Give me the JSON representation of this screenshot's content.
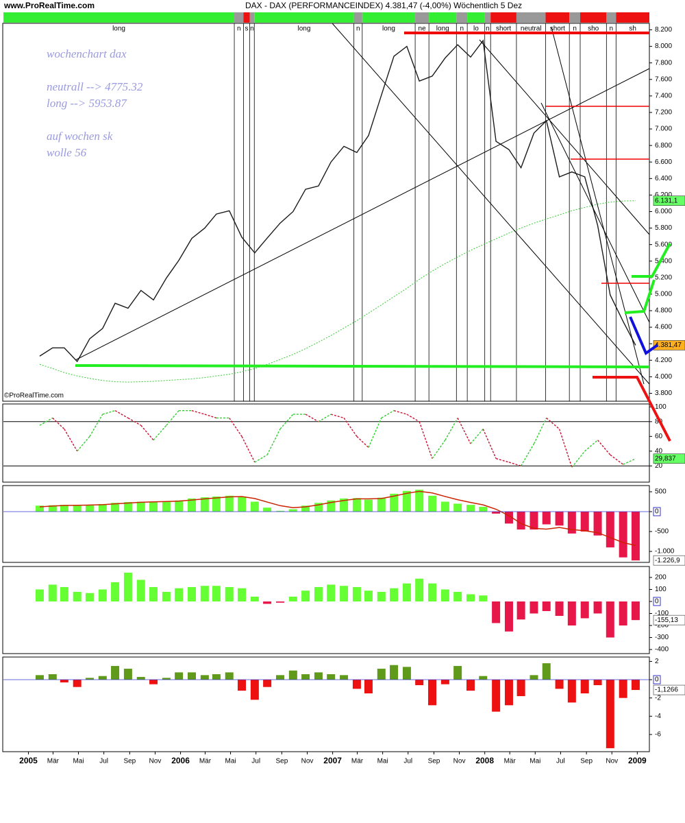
{
  "site": "www.ProRealTime.com",
  "copyright": "©ProRealTime.com",
  "chart_data": [
    {
      "type": "line",
      "title": "DAX - DAX (PERFORMANCEINDEX)    4.381,47 (-4,00%)    Wöchentlich  5 Dez",
      "annotations": [
        "wochenchart  dax",
        "neutrall --> 4775.32",
        "long      --> 5953.87",
        "auf wochen sk",
        "wolle 56"
      ],
      "x": [
        "2005-01",
        "2005-02",
        "2005-03",
        "2005-04",
        "2005-05",
        "2005-06",
        "2005-07",
        "2005-08",
        "2005-09",
        "2005-10",
        "2005-11",
        "2005-12",
        "2006-01",
        "2006-02",
        "2006-03",
        "2006-04",
        "2006-05",
        "2006-06",
        "2006-07",
        "2006-08",
        "2006-09",
        "2006-10",
        "2006-11",
        "2006-12",
        "2007-01",
        "2007-02",
        "2007-03",
        "2007-04",
        "2007-05",
        "2007-06",
        "2007-07",
        "2007-08",
        "2007-09",
        "2007-10",
        "2007-11",
        "2007-12",
        "2008-01",
        "2008-02",
        "2008-03",
        "2008-04",
        "2008-05",
        "2008-06",
        "2008-07",
        "2008-08",
        "2008-09",
        "2008-10",
        "2008-11",
        "2008-12"
      ],
      "values": [
        4250,
        4350,
        4350,
        4185,
        4460,
        4585,
        4890,
        4830,
        5045,
        4930,
        5195,
        5410,
        5675,
        5800,
        5970,
        6010,
        5690,
        5500,
        5680,
        5860,
        6000,
        6270,
        6310,
        6600,
        6790,
        6715,
        6920,
        7410,
        7880,
        8000,
        7580,
        7640,
        7860,
        8020,
        7870,
        8070,
        6850,
        6750,
        6530,
        6950,
        7100,
        6420,
        6480,
        6420,
        5830,
        4990,
        4670,
        4381.47
      ],
      "color": "#1a1a1a",
      "last_label": "4.381,47",
      "last_label_color": "#ffb020",
      "ma": {
        "values": [
          4150,
          4100,
          4050,
          4010,
          3980,
          3955,
          3940,
          3935,
          3940,
          3945,
          3955,
          3965,
          3975,
          3990,
          4010,
          4030,
          4060,
          4100,
          4150,
          4210,
          4270,
          4340,
          4420,
          4500,
          4590,
          4680,
          4770,
          4870,
          4970,
          5070,
          5180,
          5280,
          5370,
          5450,
          5530,
          5600,
          5670,
          5740,
          5800,
          5860,
          5910,
          5960,
          6010,
          6050,
          6090,
          6115,
          6128,
          6131.1
        ],
        "color": "#33cc33",
        "last_label": "6.131,1",
        "last_label_color": "#66ff66"
      },
      "regimes": [
        {
          "label": "long",
          "color": "#33ee33",
          "start": "2004-11-02"
        },
        {
          "label": "n",
          "color": "#999999",
          "start": "2006-05-10"
        },
        {
          "label": "s",
          "color": "#ee1111",
          "start": "2006-06-01"
        },
        {
          "label": "n",
          "color": "#999999",
          "start": "2006-06-16"
        },
        {
          "label": "long",
          "color": "#33ee33",
          "start": "2006-06-27"
        },
        {
          "label": "n",
          "color": "#999999",
          "start": "2007-02-21"
        },
        {
          "label": "long",
          "color": "#33ee33",
          "start": "2007-03-13"
        },
        {
          "label": "ne",
          "color": "#999999",
          "start": "2007-07-18"
        },
        {
          "label": "long",
          "color": "#33ee33",
          "start": "2007-08-20"
        },
        {
          "label": "n",
          "color": "#999999",
          "start": "2007-10-25"
        },
        {
          "label": "lo",
          "color": "#33ee33",
          "start": "2007-11-20"
        },
        {
          "label": "n",
          "color": "#999999",
          "start": "2008-01-01"
        },
        {
          "label": "short",
          "color": "#ee1111",
          "start": "2008-01-15"
        },
        {
          "label": "neutral",
          "color": "#999999",
          "start": "2008-03-17"
        },
        {
          "label": "short",
          "color": "#ee1111",
          "start": "2008-05-26"
        },
        {
          "label": "n",
          "color": "#999999",
          "start": "2008-07-22"
        },
        {
          "label": "sho",
          "color": "#ee1111",
          "start": "2008-08-17"
        },
        {
          "label": "n",
          "color": "#999999",
          "start": "2008-10-19"
        },
        {
          "label": "sh",
          "color": "#ee1111",
          "start": "2008-11-11"
        }
      ],
      "regime_end": "2009-01-30",
      "xlim": [
        "2004-11-02",
        "2009-01-30"
      ],
      "ylim": [
        3704,
        8279
      ],
      "yticks": [
        {
          "value": 3800,
          "label": "3.800"
        },
        {
          "value": 4000,
          "label": "4.000"
        },
        {
          "value": 4200,
          "label": "4.200"
        },
        {
          "value": 4400,
          "label": "4.400"
        },
        {
          "value": 4600,
          "label": "4.600"
        },
        {
          "value": 4800,
          "label": "4.800"
        },
        {
          "value": 5000,
          "label": "5.000"
        },
        {
          "value": 5200,
          "label": "5.200"
        },
        {
          "value": 5400,
          "label": "5.400"
        },
        {
          "value": 5600,
          "label": "5.600"
        },
        {
          "value": 5800,
          "label": "5.800"
        },
        {
          "value": 6000,
          "label": "6.000"
        },
        {
          "value": 6200,
          "label": "6.200"
        },
        {
          "value": 6400,
          "label": "6.400"
        },
        {
          "value": 6600,
          "label": "6.600"
        },
        {
          "value": 6800,
          "label": "6.800"
        },
        {
          "value": 7000,
          "label": "7.000"
        },
        {
          "value": 7200,
          "label": "7.200"
        },
        {
          "value": 7400,
          "label": "7.400"
        },
        {
          "value": 7600,
          "label": "7.600"
        },
        {
          "value": 7800,
          "label": "7.800"
        },
        {
          "value": 8000,
          "label": "8.000"
        },
        {
          "value": 8200,
          "label": "8.200"
        }
      ]
    },
    {
      "type": "stochastic",
      "values": [
        75,
        85,
        70,
        40,
        60,
        90,
        95,
        85,
        75,
        55,
        75,
        95,
        95,
        90,
        85,
        85,
        60,
        25,
        35,
        70,
        90,
        90,
        80,
        90,
        85,
        60,
        45,
        85,
        95,
        90,
        80,
        30,
        55,
        85,
        50,
        70,
        30,
        25,
        20,
        50,
        85,
        70,
        18,
        40,
        55,
        35,
        22,
        29.837
      ],
      "up_color": "#33cc33",
      "down_color": "#cc1133",
      "last_label": "29,837",
      "last_label_color": "#66ff66",
      "levels": [
        20,
        80
      ],
      "ylim": [
        -2,
        104
      ],
      "yticks": [
        20,
        40,
        60,
        80,
        100
      ]
    },
    {
      "type": "bar",
      "values": [
        150,
        160,
        170,
        160,
        170,
        190,
        220,
        240,
        250,
        250,
        260,
        280,
        330,
        360,
        380,
        400,
        380,
        250,
        100,
        20,
        60,
        150,
        220,
        280,
        330,
        340,
        300,
        350,
        450,
        520,
        550,
        400,
        250,
        200,
        170,
        120,
        -50,
        -300,
        -450,
        -450,
        -320,
        -350,
        -550,
        -500,
        -600,
        -900,
        -1150,
        -1226.9
      ],
      "signal": {
        "values": [
          120,
          140,
          155,
          160,
          165,
          175,
          195,
          215,
          235,
          245,
          255,
          265,
          290,
          320,
          345,
          370,
          380,
          330,
          240,
          150,
          100,
          120,
          170,
          230,
          280,
          320,
          320,
          330,
          390,
          460,
          510,
          470,
          380,
          300,
          230,
          170,
          60,
          -100,
          -300,
          -420,
          -440,
          -400,
          -450,
          -480,
          -530,
          -650,
          -780,
          -850
        ],
        "color": "#cc2200"
      },
      "up_color": "#66ff33",
      "down_color": "#e8174a",
      "last_label": "-1.226,9",
      "last_label_color": "#ffffff",
      "ylim": [
        -1276,
        655
      ],
      "yticks": [
        500,
        0,
        -500,
        {
          "value": -1000,
          "label": "-1.000"
        }
      ]
    },
    {
      "type": "bar",
      "values": [
        100,
        140,
        120,
        80,
        70,
        100,
        160,
        240,
        180,
        120,
        80,
        110,
        120,
        130,
        130,
        120,
        110,
        40,
        -20,
        -10,
        40,
        90,
        120,
        140,
        130,
        120,
        90,
        80,
        110,
        150,
        190,
        150,
        100,
        80,
        60,
        50,
        -180,
        -250,
        -150,
        -100,
        -80,
        -120,
        -200,
        -140,
        -100,
        -300,
        -200,
        -155.13
      ],
      "up_color": "#66ff33",
      "down_color": "#e8174a",
      "last_label": "-155,13",
      "last_label_color": "#ffffff",
      "ylim": [
        -434,
        291
      ],
      "yticks": [
        200,
        100,
        0,
        -100,
        -200,
        -300,
        -400
      ]
    },
    {
      "type": "bar",
      "values": [
        0.5,
        0.6,
        -0.3,
        -0.8,
        0.2,
        0.4,
        1.5,
        1.2,
        0.3,
        -0.5,
        0.2,
        0.8,
        0.8,
        0.5,
        0.6,
        0.8,
        -1.2,
        -2.2,
        -0.8,
        0.5,
        1.0,
        0.6,
        0.8,
        0.6,
        0.5,
        -1.0,
        -1.5,
        1.2,
        1.6,
        1.4,
        -0.6,
        -2.8,
        -0.5,
        1.5,
        -1.2,
        0.4,
        -3.5,
        -2.8,
        -1.8,
        0.5,
        1.8,
        -1.0,
        -2.5,
        -1.5,
        -0.6,
        -7.5,
        -2.0,
        -1.1266
      ],
      "up_color": "#5f9a1a",
      "down_color": "#ee1111",
      "last_label": "-1,1266",
      "last_label_color": "#ffffff",
      "ylim": [
        -7.88,
        2.48
      ],
      "yticks": [
        2,
        0,
        -2,
        -4,
        -6
      ],
      "xticks": [
        {
          "value": "2005-01-01",
          "label": "2005"
        },
        {
          "value": "2005-03-01",
          "label": "Mär"
        },
        {
          "value": "2005-05-01",
          "label": "Mai"
        },
        {
          "value": "2005-07-01",
          "label": "Jul"
        },
        {
          "value": "2005-09-01",
          "label": "Sep"
        },
        {
          "value": "2005-11-01",
          "label": "Nov"
        },
        {
          "value": "2006-01-01",
          "label": "2006"
        },
        {
          "value": "2006-03-01",
          "label": "Mär"
        },
        {
          "value": "2006-05-01",
          "label": "Mai"
        },
        {
          "value": "2006-07-01",
          "label": "Jul"
        },
        {
          "value": "2006-09-01",
          "label": "Sep"
        },
        {
          "value": "2006-11-01",
          "label": "Nov"
        },
        {
          "value": "2007-01-01",
          "label": "2007"
        },
        {
          "value": "2007-03-01",
          "label": "Mär"
        },
        {
          "value": "2007-05-01",
          "label": "Mai"
        },
        {
          "value": "2007-07-01",
          "label": "Jul"
        },
        {
          "value": "2007-09-01",
          "label": "Sep"
        },
        {
          "value": "2007-11-01",
          "label": "Nov"
        },
        {
          "value": "2008-01-01",
          "label": "2008"
        },
        {
          "value": "2008-03-01",
          "label": "Mär"
        },
        {
          "value": "2008-05-01",
          "label": "Mai"
        },
        {
          "value": "2008-07-01",
          "label": "Jul"
        },
        {
          "value": "2008-09-01",
          "label": "Sep"
        },
        {
          "value": "2008-11-01",
          "label": "Nov"
        },
        {
          "value": "2009-01-01",
          "label": "2009"
        }
      ]
    }
  ]
}
